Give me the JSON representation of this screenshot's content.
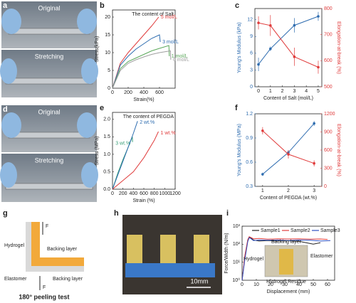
{
  "panel_labels": [
    "a",
    "b",
    "c",
    "d",
    "e",
    "f",
    "g",
    "h",
    "i"
  ],
  "photo_a": [
    "Original",
    "Stretching"
  ],
  "photo_d": [
    "Original",
    "Stretching"
  ],
  "photo_h": [
    "10mm"
  ],
  "diagram_g": {
    "hydrogel": "Hydrogel",
    "backing_top": "Backing layer",
    "elastomer": "Elastomer",
    "backing_bottom": "Backing layer",
    "force_up": "F",
    "force_down": "F",
    "caption": "180° peeling test"
  },
  "inset_i": [
    "Backing layer",
    "Elastomer",
    "Hydrogel",
    "Hydrogel Residue"
  ],
  "chart_data": [
    {
      "type": "line",
      "annotation": "The content of Salt",
      "xlabel": "Strain(%)",
      "ylabel": "Stress(kPa)",
      "xlim": [
        0,
        800
      ],
      "xticks": [
        0,
        200,
        400,
        600
      ],
      "ylim": [
        0,
        22
      ],
      "yticks": [
        0,
        5,
        10,
        15,
        20
      ],
      "legend": "inline",
      "series": [
        {
          "name": "5 mol/L",
          "color": "#e03c3c",
          "x": [
            0,
            100,
            200,
            300,
            400,
            500,
            590
          ],
          "values": [
            0,
            7,
            10,
            12.5,
            15,
            17.5,
            20
          ]
        },
        {
          "name": "3 mol/L",
          "color": "#2f6db0",
          "x": [
            0,
            100,
            200,
            300,
            400,
            500,
            600,
            610
          ],
          "values": [
            0,
            6.5,
            9,
            11,
            12.5,
            14,
            15,
            13
          ]
        },
        {
          "name": "1 mol/L",
          "color": "#5aa85a",
          "x": [
            0,
            100,
            200,
            300,
            400,
            500,
            600,
            720,
            725
          ],
          "values": [
            0,
            5.5,
            7.5,
            8.5,
            9.5,
            10.5,
            11.2,
            12,
            9
          ]
        },
        {
          "name": "0 mol/L",
          "color": "#a0a0a0",
          "x": [
            0,
            100,
            200,
            300,
            400,
            500,
            600,
            740,
            745
          ],
          "values": [
            0,
            5,
            7,
            8,
            8.8,
            9.5,
            10,
            10.5,
            8
          ]
        }
      ]
    },
    {
      "type": "line",
      "xlabel": "Content of Salt (mol/L)",
      "ylabel": "Young's Modulus (kPa)",
      "y2label": "Elongation-at-break (%)",
      "x": [
        0,
        1,
        3,
        5
      ],
      "xlim": [
        -0.3,
        5.3
      ],
      "xticks": [
        0,
        1,
        2,
        3,
        4,
        5
      ],
      "ylim": [
        0,
        14
      ],
      "yticks": [
        0,
        3,
        6,
        9,
        12
      ],
      "y2lim": [
        500,
        800
      ],
      "y2ticks": [
        500,
        600,
        700,
        800
      ],
      "markers": true,
      "legend": "none",
      "series": [
        {
          "color": "#2f6db0",
          "values": [
            4.0,
            6.8,
            11.0,
            12.6
          ],
          "errors": [
            1.2,
            0.4,
            1.3,
            0.8
          ]
        },
        {
          "color": "#e03c3c",
          "axis": "y2",
          "values": [
            745,
            735,
            615,
            575
          ],
          "errors": [
            25,
            40,
            35,
            25
          ]
        }
      ]
    },
    {
      "type": "line",
      "annotation": "The content of PEGDA",
      "xlabel": "Strain (%)",
      "ylabel": "Stress (MPa)",
      "xlim": [
        0,
        1200
      ],
      "xticks": [
        0,
        200,
        400,
        600,
        800,
        1000,
        1200
      ],
      "ylim": [
        0,
        2.2
      ],
      "yticks": [
        {
          "value": 0,
          "label": "0.0"
        },
        0.5,
        {
          "value": 1,
          "label": "1.0"
        },
        1.5,
        {
          "value": 2,
          "label": "2.0"
        }
      ],
      "legend": "inline",
      "series": [
        {
          "name": "3 wt.%",
          "color": "#3ca07a",
          "x": [
            0,
            100,
            200,
            300,
            380,
            385
          ],
          "values": [
            0,
            0.45,
            0.85,
            1.2,
            1.5,
            1.35
          ]
        },
        {
          "name": "2 wt.%",
          "color": "#2f6db0",
          "x": [
            0,
            100,
            200,
            300,
            400,
            480
          ],
          "values": [
            0,
            0.4,
            0.8,
            1.2,
            1.6,
            1.95
          ]
        },
        {
          "name": "1 wt.%",
          "color": "#e03c3c",
          "x": [
            0,
            200,
            400,
            600,
            800,
            880
          ],
          "values": [
            0,
            0.25,
            0.5,
            0.9,
            1.4,
            1.65
          ]
        }
      ]
    },
    {
      "type": "line",
      "xlabel": "Content of PEGDA (wt.%)",
      "ylabel": "Young's Modulus (MPa)",
      "y2label": "Elongation-at-break (%)",
      "x": [
        1,
        2,
        3
      ],
      "xlim": [
        0.7,
        3.3
      ],
      "xticks": [
        1,
        2,
        3
      ],
      "ylim": [
        0.3,
        1.2
      ],
      "yticks": [
        0.3,
        0.6,
        0.9,
        1.2
      ],
      "y2lim": [
        0,
        1200
      ],
      "y2ticks": [
        0,
        300,
        600,
        900,
        1200
      ],
      "markers": true,
      "legend": "none",
      "series": [
        {
          "color": "#2f6db0",
          "values": [
            0.45,
            0.72,
            1.08
          ],
          "errors": [
            0.02,
            0.03,
            0.03
          ]
        },
        {
          "color": "#e03c3c",
          "axis": "y2",
          "values": [
            920,
            530,
            380
          ],
          "errors": [
            60,
            70,
            50
          ]
        }
      ]
    },
    {
      "type": "line",
      "xlabel": "Displacement (mm)",
      "ylabel": "Force/Width (N/m)",
      "log": true,
      "xlim": [
        0,
        65
      ],
      "xticks": [
        0,
        10,
        20,
        30,
        40,
        50,
        60
      ],
      "ylim": [
        1,
        1000
      ],
      "yticks": [
        {
          "value": 1,
          "label": "10⁰"
        },
        {
          "value": 10,
          "label": "10¹"
        },
        {
          "value": 100,
          "label": "10²"
        },
        {
          "value": 1000,
          "label": "10³"
        }
      ],
      "legend": "top",
      "series": [
        {
          "name": "Sample1",
          "color": "#222222",
          "x": [
            0,
            2,
            4,
            5,
            6,
            8,
            12,
            18,
            25,
            32,
            40,
            45,
            50,
            55
          ],
          "values": [
            1,
            20,
            160,
            250,
            230,
            170,
            150,
            160,
            150,
            155,
            145,
            120,
            100,
            120
          ]
        },
        {
          "name": "Sample2",
          "color": "#e03c3c",
          "x": [
            0,
            2,
            4,
            5,
            6,
            8,
            12,
            18,
            25,
            32,
            40,
            48,
            55,
            60
          ],
          "values": [
            1,
            25,
            180,
            260,
            240,
            200,
            210,
            190,
            200,
            195,
            200,
            190,
            195,
            185
          ]
        },
        {
          "name": "Sample3",
          "color": "#2f4fc0",
          "x": [
            0,
            2,
            4,
            5,
            6,
            8,
            12,
            18,
            25,
            32,
            40,
            48,
            55,
            62
          ],
          "values": [
            1,
            15,
            140,
            230,
            210,
            160,
            170,
            165,
            170,
            160,
            170,
            165,
            150,
            160
          ]
        }
      ]
    }
  ]
}
